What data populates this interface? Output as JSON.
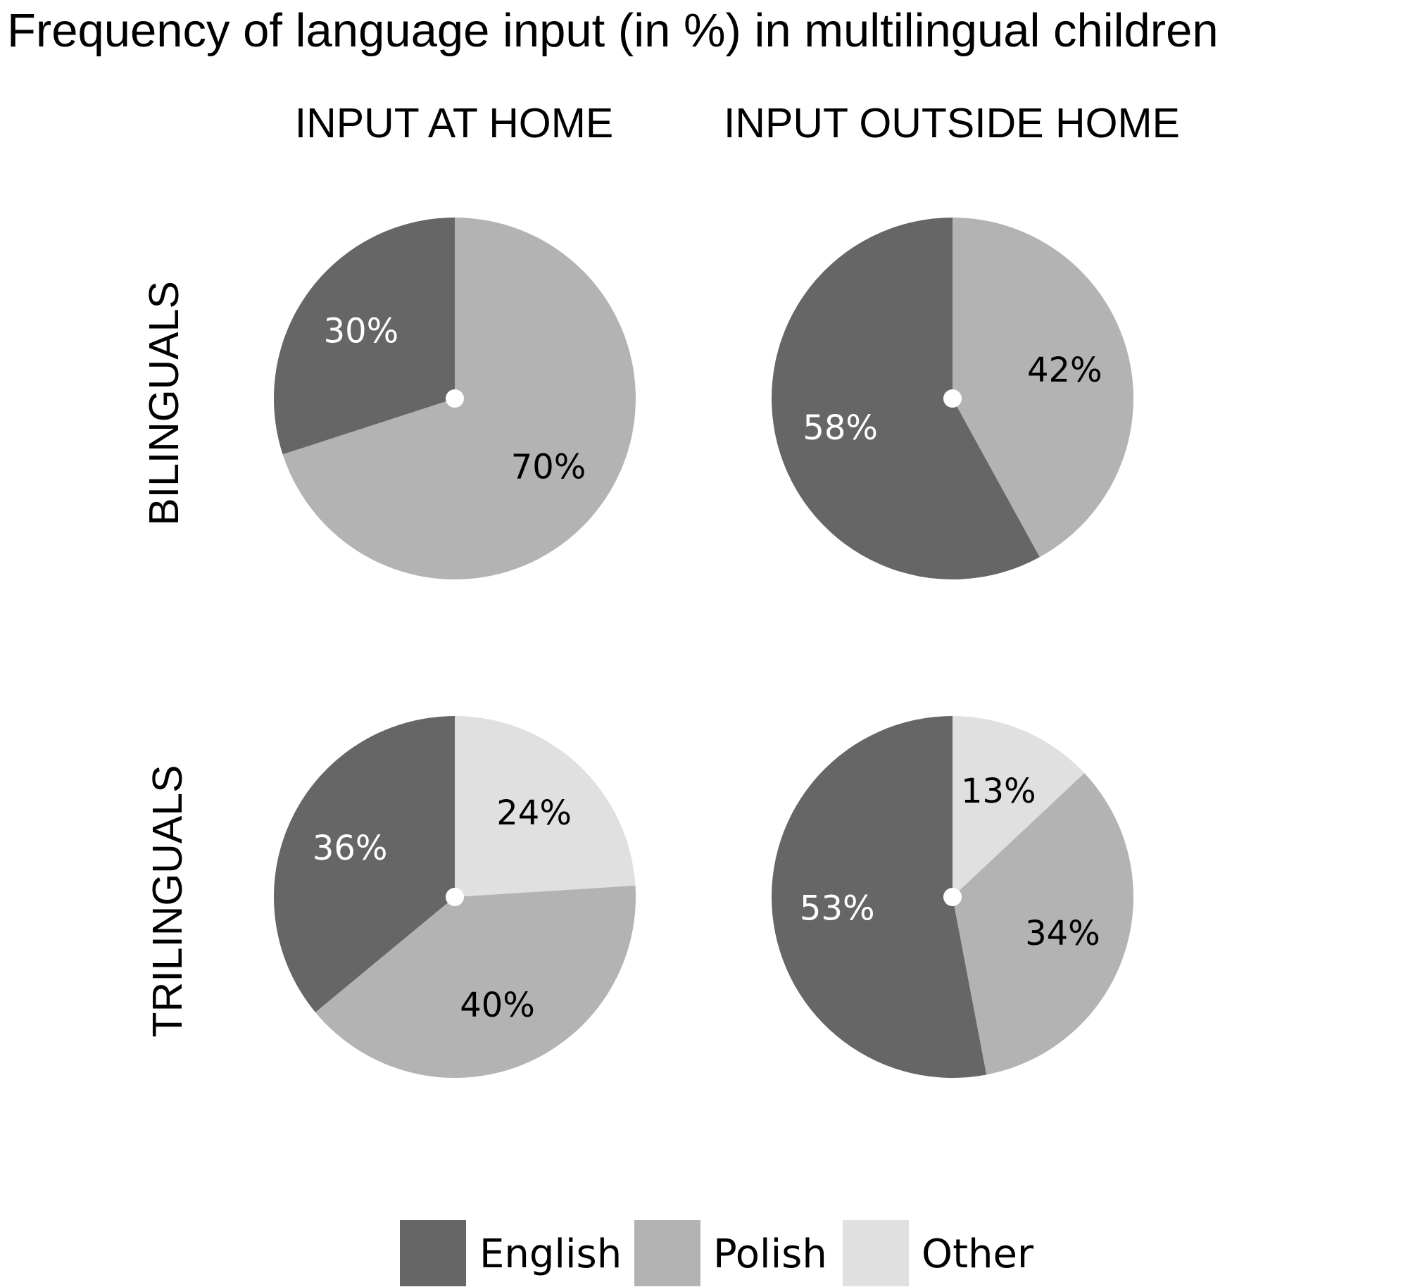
{
  "chart_data": {
    "type": "pie",
    "title": "Frequency of language input (in %) in multilingual children",
    "columns": [
      "INPUT AT HOME",
      "INPUT OUTSIDE HOME"
    ],
    "rows": [
      "BILINGUALS",
      "TRILINGUALS"
    ],
    "legend": {
      "position": "bottom",
      "entries": [
        {
          "name": "English",
          "color": "#666666"
        },
        {
          "name": "Polish",
          "color": "#b3b3b3"
        },
        {
          "name": "Other",
          "color": "#e0e0e0"
        }
      ]
    },
    "panels": [
      {
        "row": "BILINGUALS",
        "column": "INPUT AT HOME",
        "slices": [
          {
            "category": "Other",
            "value": 0,
            "label": ""
          },
          {
            "category": "Polish",
            "value": 70,
            "label": "70%"
          },
          {
            "category": "English",
            "value": 30,
            "label": "30%"
          }
        ]
      },
      {
        "row": "BILINGUALS",
        "column": "INPUT OUTSIDE HOME",
        "slices": [
          {
            "category": "Other",
            "value": 0,
            "label": ""
          },
          {
            "category": "Polish",
            "value": 42,
            "label": "42%"
          },
          {
            "category": "English",
            "value": 58,
            "label": "58%"
          }
        ]
      },
      {
        "row": "TRILINGUALS",
        "column": "INPUT AT HOME",
        "slices": [
          {
            "category": "Other",
            "value": 24,
            "label": "24%"
          },
          {
            "category": "Polish",
            "value": 40,
            "label": "40%"
          },
          {
            "category": "English",
            "value": 36,
            "label": "36%"
          }
        ]
      },
      {
        "row": "TRILINGUALS",
        "column": "INPUT OUTSIDE HOME",
        "slices": [
          {
            "category": "Other",
            "value": 13,
            "label": "13%"
          },
          {
            "category": "Polish",
            "value": 34,
            "label": "34%"
          },
          {
            "category": "English",
            "value": 53,
            "label": "53%"
          }
        ]
      }
    ]
  }
}
